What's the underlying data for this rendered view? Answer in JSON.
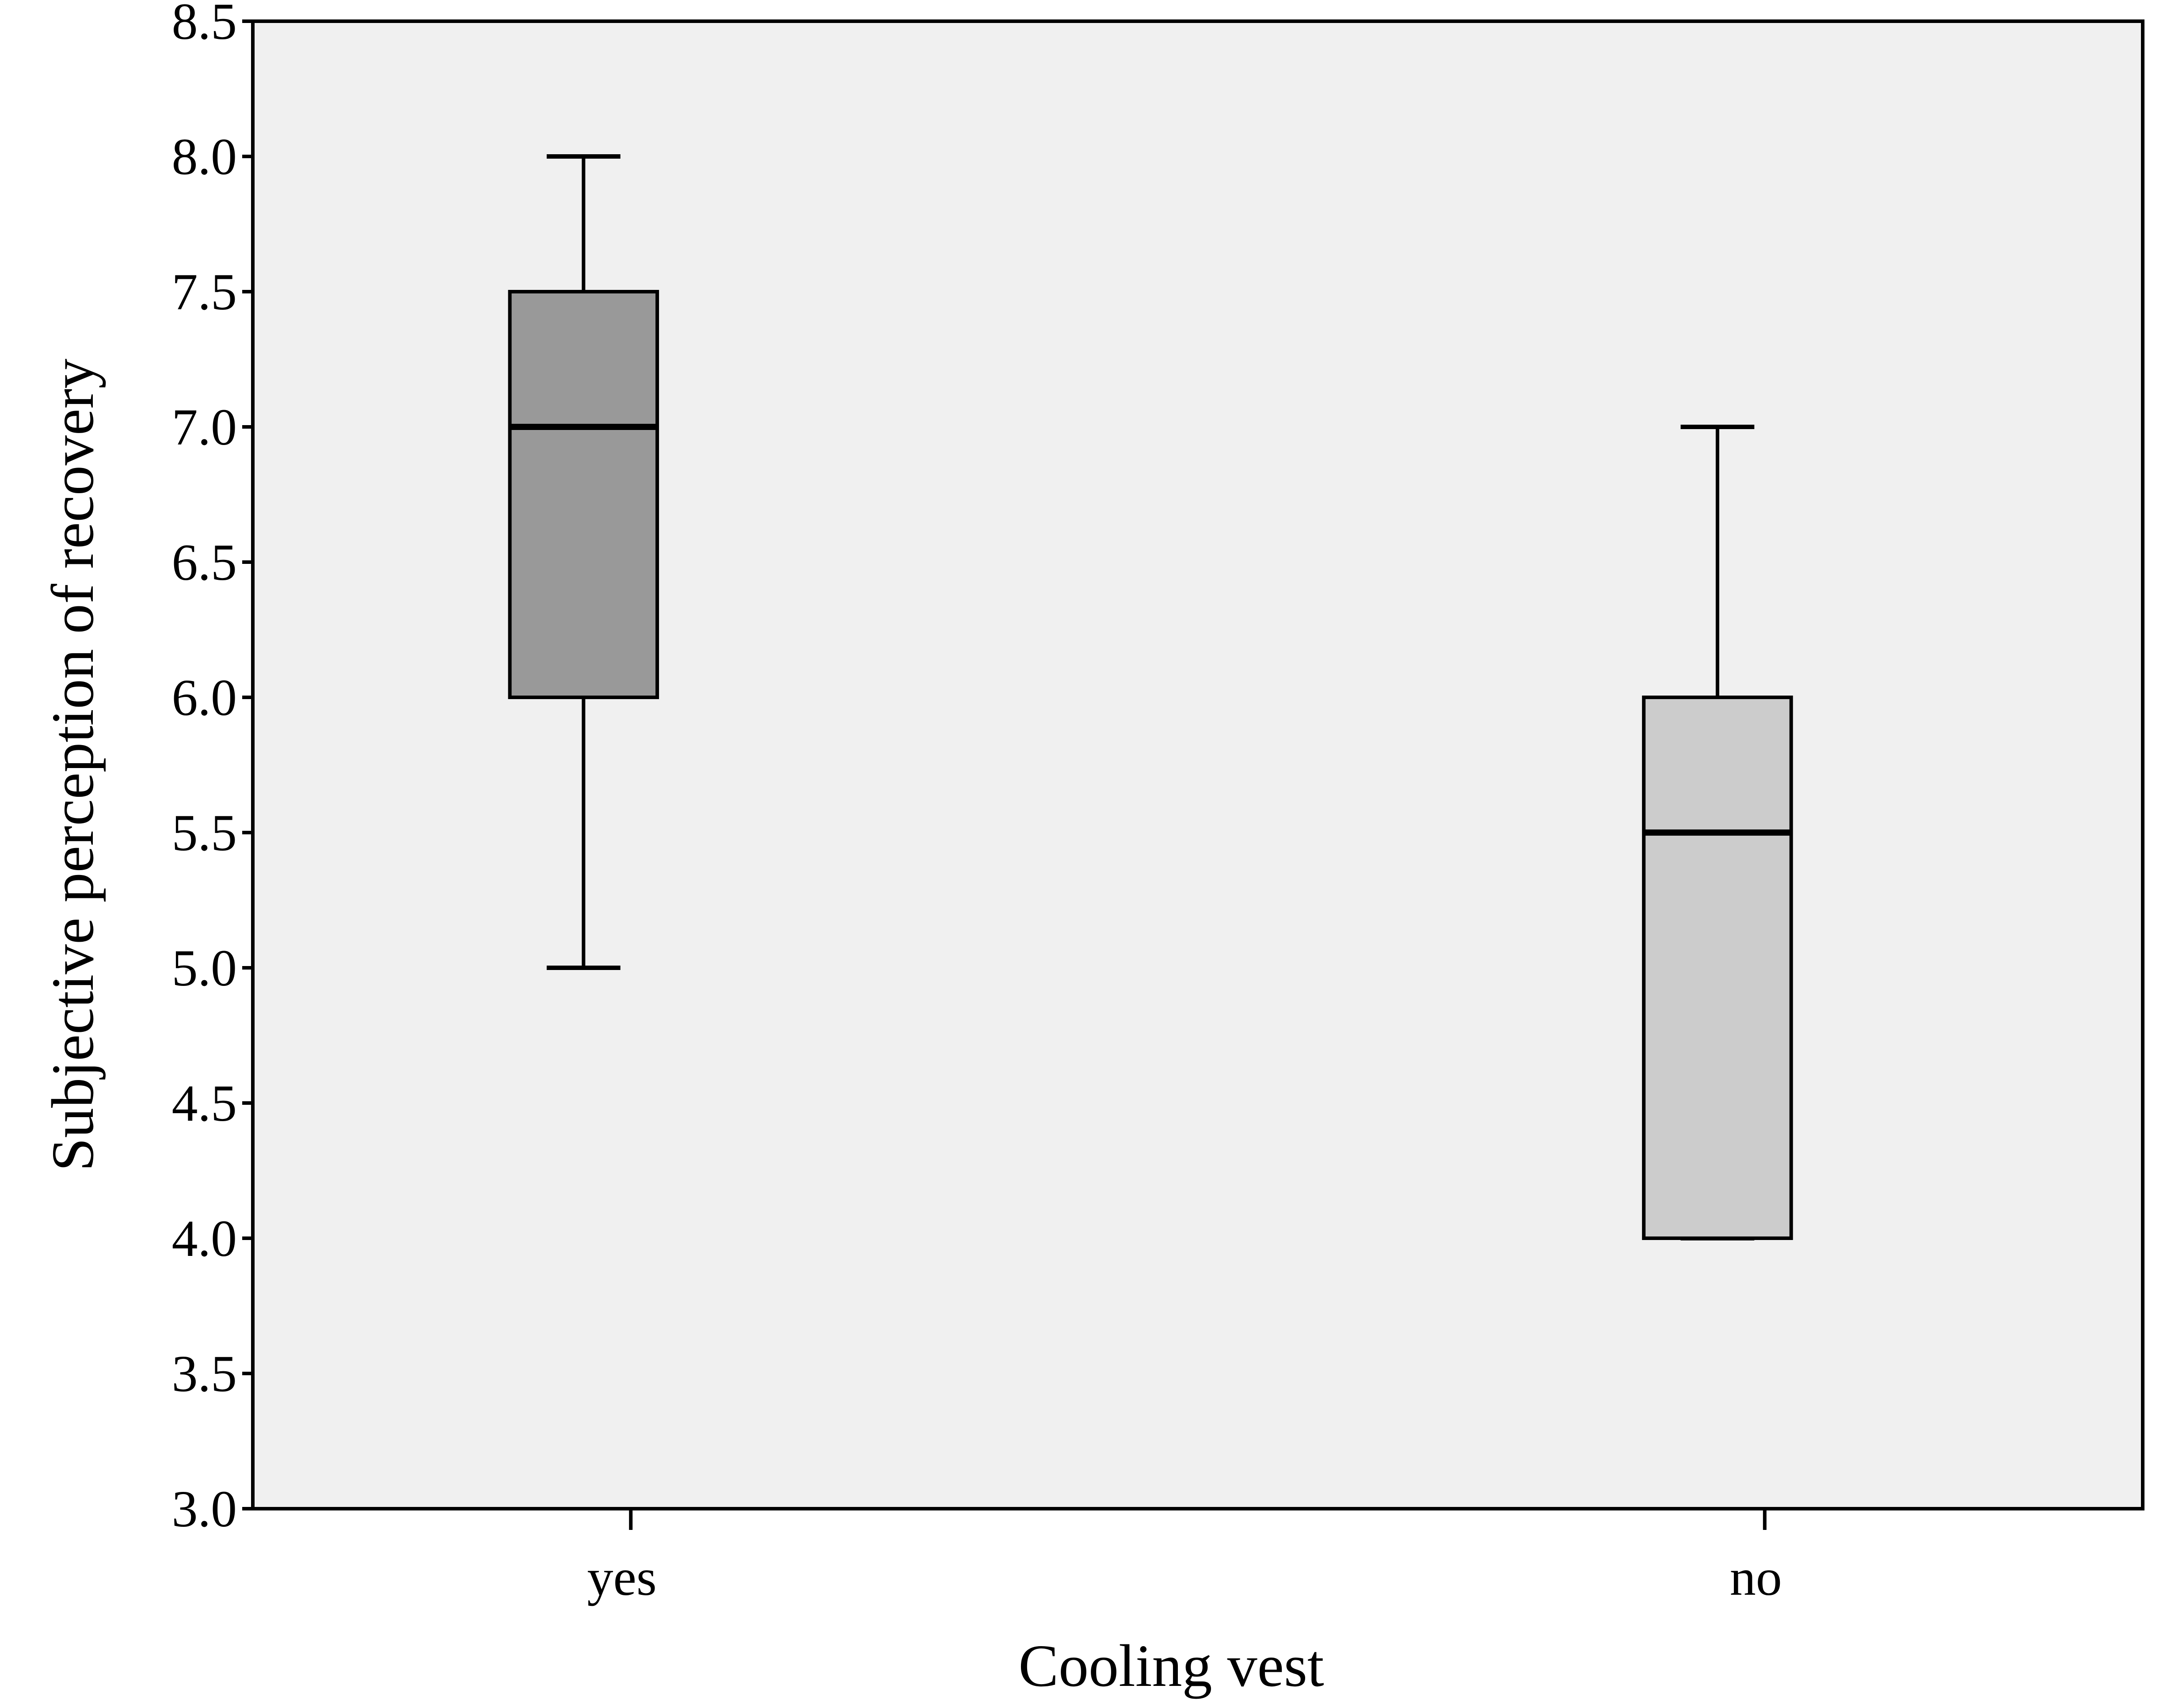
{
  "chart_data": {
    "type": "box",
    "title": "",
    "xlabel": "Cooling vest",
    "ylabel": "Subjective perception of recovery",
    "ylim": [
      3.0,
      8.5
    ],
    "yticks": [
      "3.0",
      "3.5",
      "4.0",
      "4.5",
      "5.0",
      "5.5",
      "6.0",
      "6.5",
      "7.0",
      "7.5",
      "8.0",
      "8.5"
    ],
    "grid": false,
    "legend": "none",
    "plot_background": "#f0f0f0",
    "categories": [
      "yes",
      "no"
    ],
    "boxes": [
      {
        "category": "yes",
        "min": 5.0,
        "q1": 6.0,
        "median": 7.0,
        "q3": 7.5,
        "max": 8.0,
        "fill": "#999999"
      },
      {
        "category": "no",
        "min": 4.0,
        "q1": 4.0,
        "median": 5.5,
        "q3": 6.0,
        "max": 7.0,
        "fill": "#cccccc"
      }
    ]
  }
}
